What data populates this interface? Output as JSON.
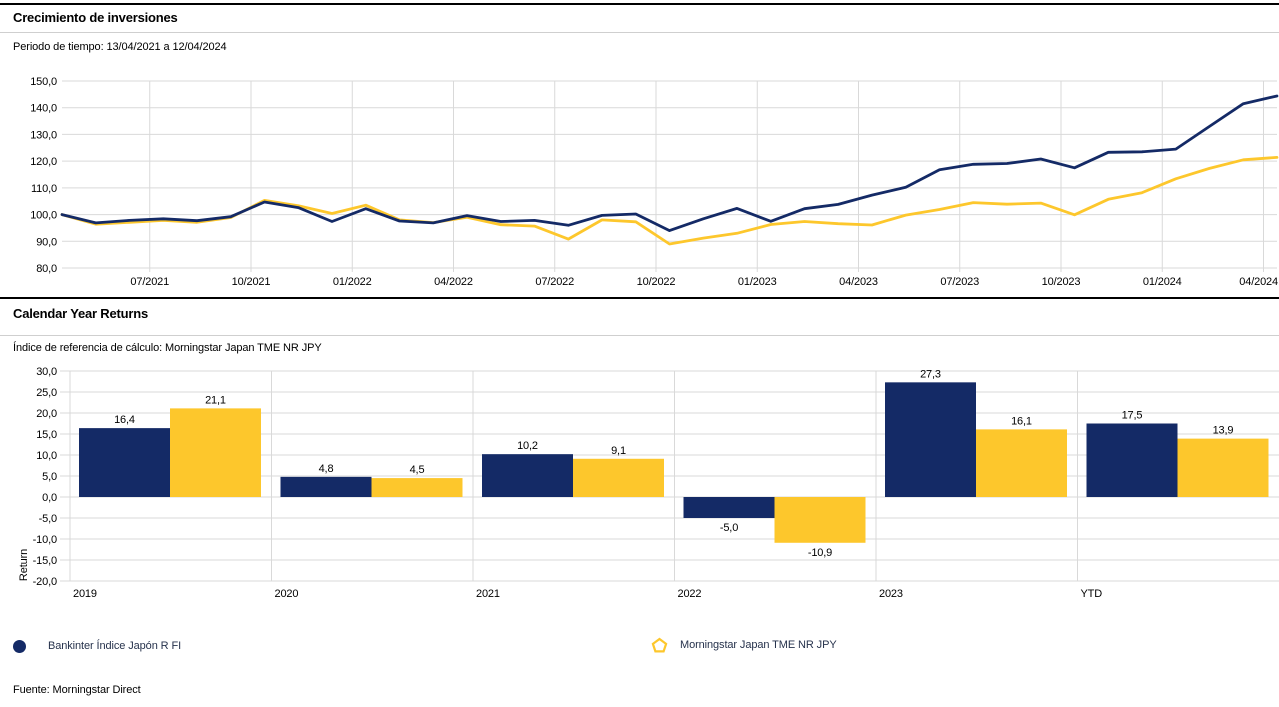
{
  "growth_section": {
    "title": "Crecimiento de inversiones",
    "subtitle": "Periodo de tiempo: 13/04/2021 a 12/04/2024"
  },
  "calendar_section": {
    "title": "Calendar Year Returns",
    "subtitle": "Índice de referencia de cálculo: Morningstar Japan TME NR JPY"
  },
  "legend": {
    "items": [
      {
        "label": "Bankinter Índice Japón R FI",
        "marker": "filled-circle",
        "color": "#142a66"
      },
      {
        "label": "Morningstar Japan TME NR JPY",
        "marker": "pentagon-outline",
        "color": "#fdc72c"
      }
    ]
  },
  "footer": {
    "source": "Fuente: Morningstar Direct"
  },
  "colors": {
    "fund": "#142a66",
    "benchmark": "#fdc72c",
    "grid": "#d9d9d9",
    "text": "#000000",
    "legend_text": "#26324c"
  },
  "chart_data": [
    {
      "type": "line",
      "title": "Crecimiento de inversiones",
      "x_tick_labels": [
        "07/2021",
        "10/2021",
        "01/2022",
        "04/2022",
        "07/2022",
        "10/2022",
        "01/2023",
        "04/2023",
        "07/2023",
        "10/2023",
        "01/2024",
        "04/2024"
      ],
      "y_tick_labels": [
        "150,0",
        "140,0",
        "130,0",
        "120,0",
        "110,0",
        "100,0",
        "90,0",
        "80,0"
      ],
      "ylim": [
        80,
        150
      ],
      "y_step": 10,
      "grid": true,
      "x_range_months": 36,
      "series": [
        {
          "name": "Morningstar Japan TME NR JPY",
          "color": "#fdc72c",
          "values": [
            100.0,
            96.4,
            97.1,
            97.8,
            97.1,
            98.9,
            105.3,
            103.3,
            100.4,
            103.5,
            98.0,
            97.0,
            99.0,
            96.2,
            95.7,
            90.8,
            98.0,
            97.3,
            89.0,
            91.2,
            93.0,
            96.3,
            97.4,
            96.6,
            96.1,
            99.8,
            101.9,
            104.5,
            103.9,
            104.3,
            99.9,
            105.7,
            108.2,
            113.4,
            117.3,
            120.5,
            121.4
          ]
        },
        {
          "name": "Bankinter Índice Japón R FI",
          "color": "#142a66",
          "values": [
            100.0,
            96.9,
            97.8,
            98.4,
            97.7,
            99.2,
            104.7,
            102.6,
            97.4,
            102.2,
            97.6,
            96.9,
            99.6,
            97.4,
            97.8,
            96.0,
            99.7,
            100.2,
            94.0,
            98.4,
            102.3,
            97.5,
            102.2,
            103.8,
            107.3,
            110.2,
            116.8,
            118.8,
            119.1,
            120.8,
            117.5,
            123.3,
            123.5,
            124.5,
            133.0,
            141.5,
            144.4
          ]
        }
      ]
    },
    {
      "type": "bar",
      "title": "Calendar Year Returns",
      "categories": [
        "2019",
        "2020",
        "2021",
        "2022",
        "2023",
        "YTD"
      ],
      "series": [
        {
          "name": "Bankinter Índice Japón R FI",
          "color": "#142a66",
          "values": [
            16.4,
            4.8,
            10.2,
            -5.0,
            27.3,
            17.5
          ]
        },
        {
          "name": "Morningstar Japan TME NR JPY",
          "color": "#fdc72c",
          "values": [
            21.1,
            4.5,
            9.1,
            -10.9,
            16.1,
            13.9
          ]
        }
      ],
      "ylabel": "Return",
      "ylim": [
        -20,
        30
      ],
      "y_step": 5,
      "y_tick_labels": [
        "30,0",
        "25,0",
        "20,0",
        "15,0",
        "10,0",
        "5,0",
        "0,0",
        "-5,0",
        "-10,0",
        "-15,0",
        "-20,0"
      ],
      "grid": true,
      "decimal_separator": ","
    }
  ]
}
